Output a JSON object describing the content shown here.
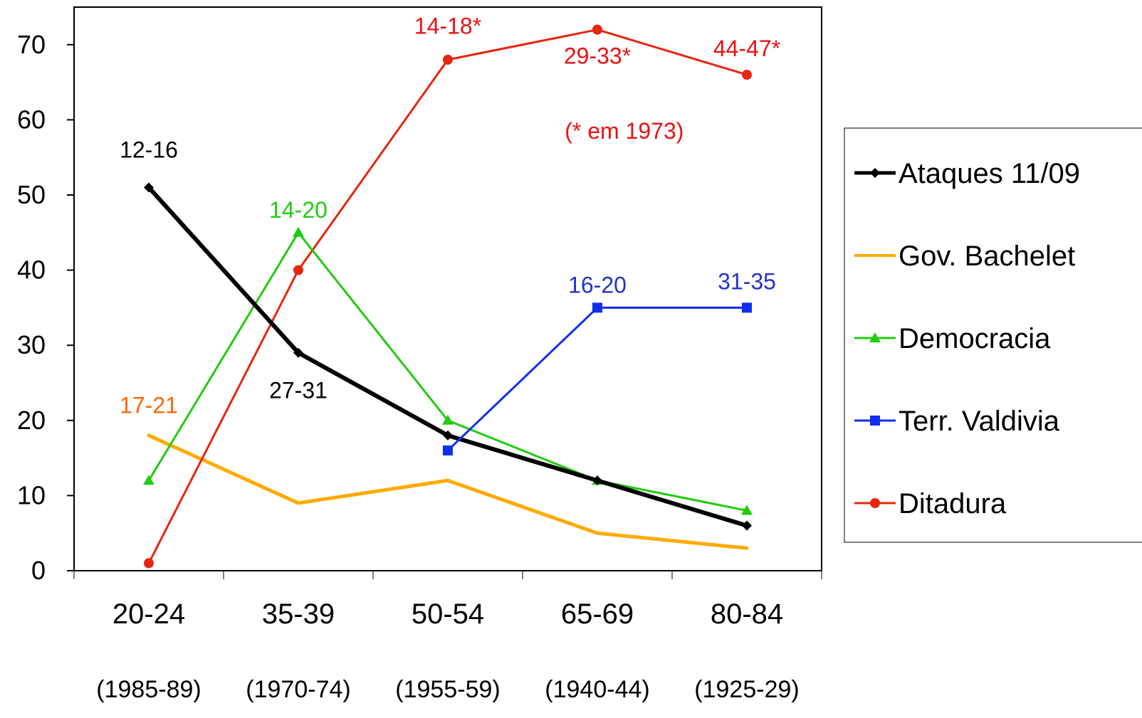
{
  "chart_data": {
    "type": "line",
    "categories": [
      "20-24",
      "35-39",
      "50-54",
      "65-69",
      "80-84"
    ],
    "category_sublabels": [
      "(1985-89)",
      "(1970-74)",
      "(1955-59)",
      "(1940-44)",
      "(1925-29)"
    ],
    "ylim": [
      0,
      75
    ],
    "yticks": [
      0,
      10,
      20,
      30,
      40,
      50,
      60,
      70
    ],
    "grid": false,
    "legend_position": "right",
    "series": [
      {
        "name": "Ataques 11/09",
        "color": "#000000",
        "marker": "diamond",
        "width": 6,
        "values": [
          51,
          29,
          18,
          12,
          6
        ]
      },
      {
        "name": "Gov. Bachelet",
        "color": "#FFAA00",
        "marker": "none",
        "width": 5,
        "values": [
          18,
          9,
          12,
          5,
          3
        ]
      },
      {
        "name": "Democracia",
        "color": "#22CC11",
        "marker": "triangle",
        "width": 3,
        "values": [
          12,
          45,
          20,
          12,
          8
        ]
      },
      {
        "name": "Terr. Valdivia",
        "color": "#0F2FEE",
        "marker": "square",
        "width": 3,
        "values": [
          null,
          null,
          16,
          35,
          35
        ]
      },
      {
        "name": "Ditadura",
        "color": "#E8250F",
        "marker": "circle",
        "width": 3,
        "values": [
          1,
          40,
          68,
          72,
          66
        ]
      }
    ],
    "annotations": [
      {
        "text": "12-16",
        "color": "#000000",
        "x": 0,
        "y": 56
      },
      {
        "text": "27-31",
        "color": "#000000",
        "x": 1,
        "y": 24
      },
      {
        "text": "17-21",
        "color": "#FF6600",
        "x": 0,
        "y": 22
      },
      {
        "text": "14-20",
        "color": "#22CC11",
        "x": 1,
        "y": 48
      },
      {
        "text": "16-20",
        "color": "#2233CC",
        "x": 3,
        "y": 38
      },
      {
        "text": "31-35",
        "color": "#2233CC",
        "x": 4,
        "y": 38.5
      },
      {
        "text": "14-18*",
        "color": "#EE1111",
        "x": 2,
        "y": 72.5
      },
      {
        "text": "29-33*",
        "color": "#EE1111",
        "x": 3,
        "y": 68.5
      },
      {
        "text": "44-47*",
        "color": "#EE1111",
        "x": 4,
        "y": 69.5
      },
      {
        "text": "(* em 1973)",
        "color": "#EE1111",
        "x": 3.18,
        "y": 58.5
      }
    ]
  }
}
